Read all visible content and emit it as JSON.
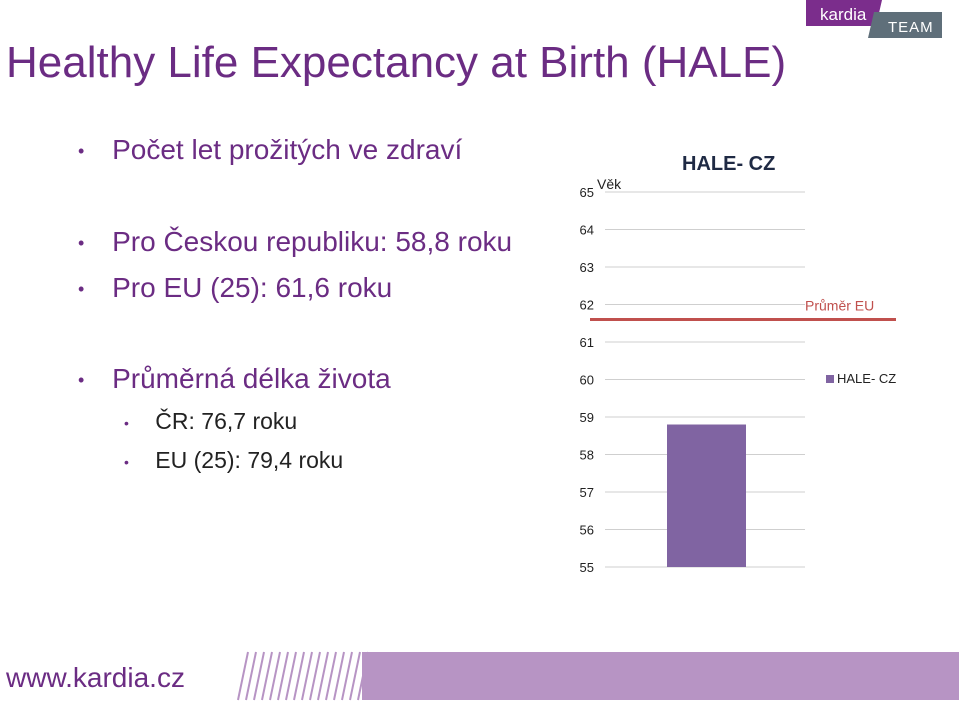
{
  "slide": {
    "title": "Healthy Life Expectancy at Birth (HALE)"
  },
  "logo": {
    "brand": "kardia",
    "team": "TEAM",
    "accent_color": "#7b2d8c",
    "team_color": "#5f6f7a"
  },
  "bullets": [
    {
      "level": 1,
      "text": "Počet let prožitých ve zdraví"
    },
    {
      "level": 1,
      "text": "Pro Českou republiku: 58,8 roku"
    },
    {
      "level": 1,
      "text": "Pro EU (25): 61,6 roku"
    },
    {
      "level": 1,
      "text": "Průměrná délka života"
    },
    {
      "level": 2,
      "text": "ČR: 76,7 roku"
    },
    {
      "level": 2,
      "text": "EU (25): 79,4 roku"
    }
  ],
  "chart_data": {
    "type": "bar",
    "title": "HALE- CZ",
    "ylabel": "Věk",
    "ylim": [
      55,
      65
    ],
    "yticks": [
      "55",
      "56",
      "57",
      "58",
      "59",
      "60",
      "61",
      "62",
      "63",
      "64",
      "65"
    ],
    "series": [
      {
        "name": "HALE- CZ",
        "values": [
          58.8
        ],
        "color": "#8064a2"
      }
    ],
    "reference_line": {
      "label": "Průměr EU",
      "value": 61.6,
      "color": "#c0504d"
    },
    "legend_position": "right",
    "grid": true
  },
  "footer": {
    "url": "www.kardia.cz",
    "band_color": "#b794c4"
  }
}
